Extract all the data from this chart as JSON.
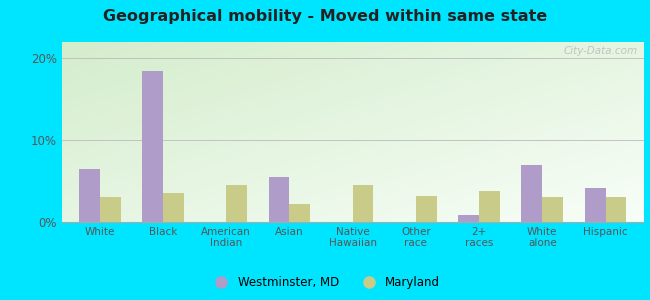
{
  "title": "Geographical mobility - Moved within same state",
  "categories": [
    "White",
    "Black",
    "American\nIndian",
    "Asian",
    "Native\nHawaiian",
    "Other\nrace",
    "2+\nraces",
    "White\nalone",
    "Hispanic"
  ],
  "westminster": [
    6.5,
    18.5,
    0,
    5.5,
    0,
    0,
    0.8,
    7.0,
    4.2
  ],
  "maryland": [
    3.0,
    3.5,
    4.5,
    2.2,
    4.5,
    3.2,
    3.8,
    3.0,
    3.0
  ],
  "westminster_color": "#b09cc8",
  "maryland_color": "#c8cc88",
  "ylim_max": 22,
  "yticks": [
    0,
    10,
    20
  ],
  "ytick_labels": [
    "0%",
    "10%",
    "20%"
  ],
  "bg_outer": "#00e5ff",
  "legend_westminster": "Westminster, MD",
  "legend_maryland": "Maryland",
  "watermark": "City-Data.com"
}
